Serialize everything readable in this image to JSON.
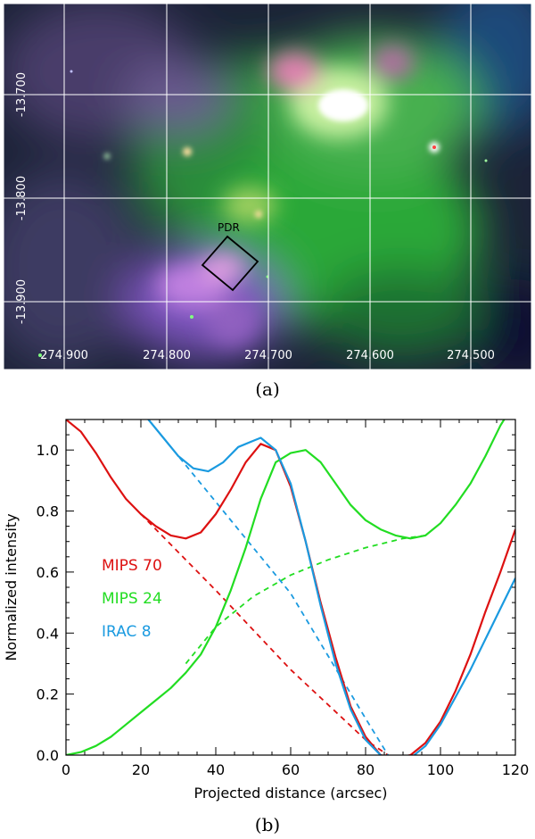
{
  "panel_a": {
    "label": "(a)",
    "ra_ticks": [
      274.9,
      274.8,
      274.7,
      274.6,
      274.5
    ],
    "ra_tick_labels": [
      "274.900",
      "274.800",
      "274.700",
      "274.600",
      "274.500"
    ],
    "dec_ticks": [
      -13.7,
      -13.8,
      -13.9
    ],
    "dec_tick_labels": [
      "-13.700",
      "-13.800",
      "-13.900"
    ],
    "box_label": "PDR",
    "colors": {
      "red": "#e04060",
      "green": "#30d040",
      "blue": "#6060e0"
    }
  },
  "panel_b": {
    "label": "(b)"
  },
  "chart_data": {
    "type": "line",
    "title": "",
    "xlabel": "Projected distance (arcsec)",
    "ylabel": "Normalized intensity",
    "xlim": [
      0,
      120
    ],
    "ylim": [
      0,
      1.1
    ],
    "xticks": [
      0,
      20,
      40,
      60,
      80,
      100,
      120
    ],
    "xtick_labels": [
      "0",
      "20",
      "40",
      "60",
      "80",
      "100",
      "120"
    ],
    "yticks": [
      0.0,
      0.2,
      0.4,
      0.6,
      0.8,
      1.0
    ],
    "ytick_labels": [
      "0.0",
      "0.2",
      "0.4",
      "0.6",
      "0.8",
      "1.0"
    ],
    "legend": [
      "MIPS 70",
      "MIPS 24",
      "IRAC 8"
    ],
    "series": [
      {
        "name": "MIPS 70",
        "color": "#dd1111",
        "style": "solid",
        "x": [
          0,
          4,
          8,
          12,
          16,
          20,
          24,
          28,
          32,
          36,
          40,
          44,
          48,
          52,
          56,
          60,
          64,
          68,
          72,
          76,
          80,
          84,
          88,
          92,
          96,
          100,
          104,
          108,
          112,
          116,
          120
        ],
        "y": [
          1.1,
          1.06,
          0.99,
          0.91,
          0.84,
          0.79,
          0.75,
          0.72,
          0.71,
          0.73,
          0.79,
          0.87,
          0.96,
          1.02,
          1.0,
          0.88,
          0.7,
          0.5,
          0.32,
          0.16,
          0.06,
          0.0,
          -0.01,
          0.0,
          0.04,
          0.11,
          0.21,
          0.33,
          0.47,
          0.6,
          0.74
        ]
      },
      {
        "name": "MIPS 24",
        "color": "#22dd22",
        "style": "solid",
        "x": [
          0,
          4,
          8,
          12,
          16,
          20,
          24,
          28,
          32,
          36,
          40,
          44,
          48,
          52,
          56,
          60,
          64,
          68,
          72,
          76,
          80,
          84,
          88,
          92,
          96,
          100,
          104,
          108,
          112,
          116,
          118
        ],
        "y": [
          0.0,
          0.01,
          0.03,
          0.06,
          0.1,
          0.14,
          0.18,
          0.22,
          0.27,
          0.33,
          0.42,
          0.54,
          0.68,
          0.84,
          0.96,
          0.99,
          1.0,
          0.96,
          0.89,
          0.82,
          0.77,
          0.74,
          0.72,
          0.71,
          0.72,
          0.76,
          0.82,
          0.89,
          0.98,
          1.08,
          1.12
        ]
      },
      {
        "name": "IRAC 8",
        "color": "#1a9ae0",
        "style": "solid",
        "x": [
          22,
          26,
          30,
          34,
          38,
          42,
          46,
          50,
          52,
          56,
          60,
          64,
          68,
          72,
          76,
          80,
          84,
          88,
          92,
          96,
          100,
          104,
          108,
          112,
          116,
          120
        ],
        "y": [
          1.1,
          1.04,
          0.98,
          0.94,
          0.93,
          0.96,
          1.01,
          1.03,
          1.04,
          1.0,
          0.89,
          0.7,
          0.49,
          0.3,
          0.15,
          0.05,
          0.0,
          -0.02,
          -0.01,
          0.03,
          0.1,
          0.19,
          0.28,
          0.38,
          0.48,
          0.58
        ]
      },
      {
        "name": "MIPS 70 baseline",
        "color": "#dd1111",
        "style": "dashed",
        "x": [
          20,
          40,
          60,
          80,
          86
        ],
        "y": [
          0.79,
          0.54,
          0.28,
          0.05,
          0.0
        ]
      },
      {
        "name": "MIPS 24 baseline",
        "color": "#22dd22",
        "style": "dashed",
        "x": [
          32,
          40,
          50,
          60,
          70,
          80,
          90,
          96
        ],
        "y": [
          0.3,
          0.42,
          0.52,
          0.59,
          0.64,
          0.68,
          0.71,
          0.72
        ]
      },
      {
        "name": "IRAC 8 baseline",
        "color": "#1a9ae0",
        "style": "dashed",
        "x": [
          22,
          40,
          60,
          80,
          86
        ],
        "y": [
          1.1,
          0.83,
          0.53,
          0.12,
          0.0
        ]
      }
    ]
  }
}
